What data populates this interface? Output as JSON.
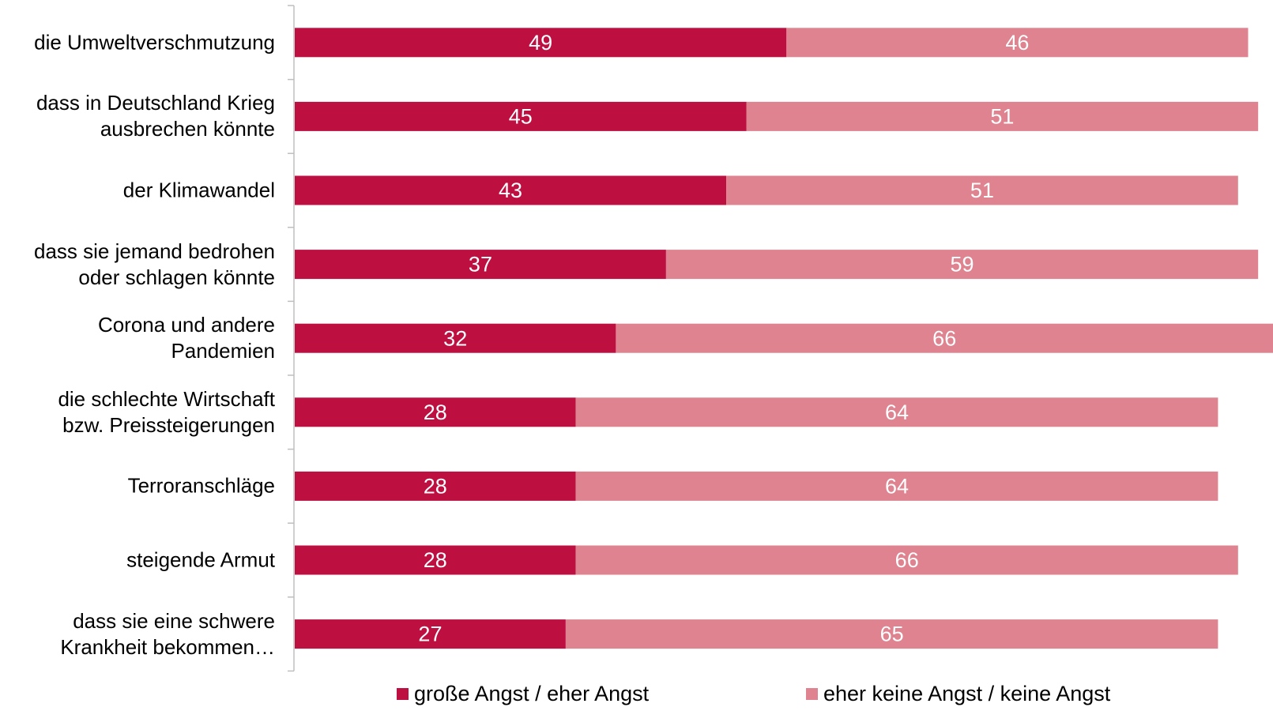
{
  "chart_data": {
    "type": "stacked-bar-horizontal",
    "categories": [
      "die Umweltverschmutzung",
      "dass in Deutschland Krieg\nausbrechen könnte",
      "der Klimawandel",
      "dass sie jemand bedrohen\noder schlagen könnte",
      "Corona und andere\nPandemien",
      "die schlechte Wirtschaft\nbzw. Preissteigerungen",
      "Terroranschläge",
      "steigende Armut",
      "dass sie eine schwere\nKrankheit bekommen…"
    ],
    "series": [
      {
        "name": "große Angst / eher Angst",
        "color": "#be0f41",
        "values": [
          49,
          45,
          43,
          37,
          32,
          28,
          28,
          28,
          27
        ]
      },
      {
        "name": "eher keine Angst / keine Angst",
        "color": "#de838f",
        "values": [
          46,
          51,
          51,
          59,
          66,
          64,
          64,
          66,
          65
        ]
      }
    ],
    "xlim": [
      0,
      100
    ],
    "legend": "bottom"
  }
}
